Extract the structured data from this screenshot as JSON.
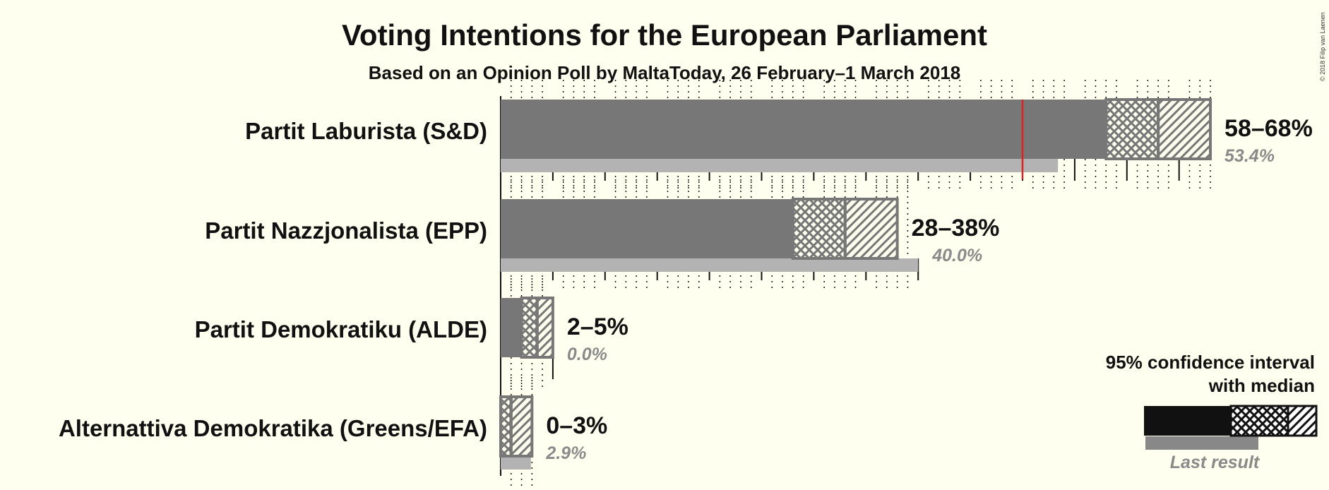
{
  "chart_data": {
    "type": "bar",
    "title": "Voting Intentions for the European Parliament",
    "subtitle": "Based on an Opinion Poll by MaltaToday, 26 February–1 March 2018",
    "parties": [
      {
        "name": "Partit Laburista (S&D)",
        "low": 58,
        "median": 63,
        "high": 68,
        "range_label": "58–68%",
        "last_result": 53.4,
        "last_label": "53.4%"
      },
      {
        "name": "Partit Nazzjonalista (EPP)",
        "low": 28,
        "median": 33,
        "high": 38,
        "range_label": "28–38%",
        "last_result": 40.0,
        "last_label": "40.0%"
      },
      {
        "name": "Partit Demokratiku (ALDE)",
        "low": 2,
        "median": 3.5,
        "high": 5,
        "range_label": "2–5%",
        "last_result": 0.0,
        "last_label": "0.0%"
      },
      {
        "name": "Alternattiva Demokratika (Greens/EFA)",
        "low": 0,
        "median": 1,
        "high": 3,
        "range_label": "0–3%",
        "last_result": 2.9,
        "last_label": "2.9%"
      }
    ],
    "majority_line": 50,
    "xlim": [
      0,
      70
    ],
    "colors": {
      "bar": "#777777",
      "last_result": "#b3b3b3",
      "majority_line": "#dd2222",
      "legend_bar": "#111111",
      "legend_last": "#888888",
      "background": "#fffff0"
    }
  },
  "legend": {
    "line1": "95% confidence interval",
    "line2": "with median",
    "last_result": "Last result"
  },
  "copyright": "© 2018 Filip van Laenen"
}
